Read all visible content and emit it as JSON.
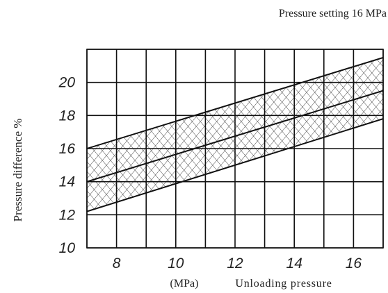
{
  "chart_data": {
    "type": "area",
    "title": "",
    "annotation": "Pressure setting 16 MPa",
    "ylabel": "Pressure difference %",
    "xlabel": "Unloading pressure",
    "xunit": "(MPa)",
    "xlim": [
      7,
      17
    ],
    "ylim": [
      10,
      22
    ],
    "xticks": [
      8,
      10,
      12,
      14,
      16
    ],
    "yticks": [
      10,
      12,
      14,
      16,
      18,
      20
    ],
    "grid": true,
    "grid_x": [
      7,
      8,
      9,
      10,
      11,
      12,
      13,
      14,
      15,
      16,
      17
    ],
    "grid_y": [
      10,
      12,
      14,
      16,
      18,
      20,
      22
    ],
    "series": [
      {
        "role": "upper",
        "x": [
          7,
          17
        ],
        "y": [
          16.0,
          21.5
        ]
      },
      {
        "role": "center",
        "x": [
          7,
          17
        ],
        "y": [
          14.0,
          19.5
        ]
      },
      {
        "role": "lower",
        "x": [
          7,
          17
        ],
        "y": [
          12.2,
          17.8
        ]
      }
    ],
    "hatched_region": {
      "x": [
        7,
        17
      ],
      "y_low": [
        12.2,
        17.8
      ],
      "y_high": [
        16.0,
        21.5
      ]
    }
  }
}
